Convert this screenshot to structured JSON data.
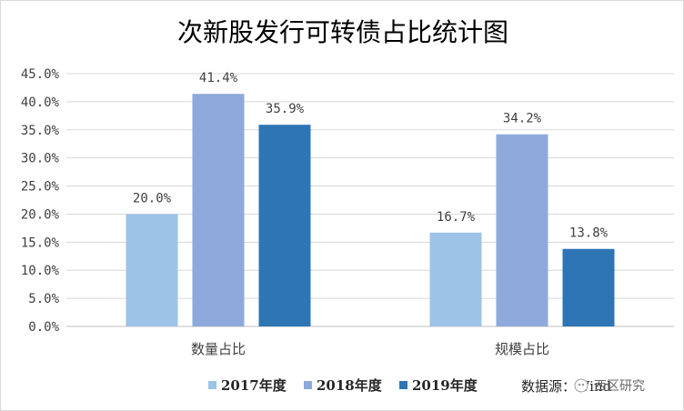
{
  "chart_data": {
    "type": "bar",
    "title": "次新股发行可转债占比统计图",
    "categories": [
      "数量占比",
      "规模占比"
    ],
    "series": [
      {
        "name": "2017年度",
        "values": [
          20.0,
          16.7
        ],
        "labels": [
          "20.0%",
          "16.7%"
        ],
        "color": "#9DC3E6"
      },
      {
        "name": "2018年度",
        "values": [
          41.4,
          34.2
        ],
        "labels": [
          "41.4%",
          "34.2%"
        ],
        "color": "#8EA9DB"
      },
      {
        "name": "2019年度",
        "values": [
          35.9,
          13.8
        ],
        "labels": [
          "35.9%",
          "13.8%"
        ],
        "color": "#2E75B6"
      }
    ],
    "yticks": [
      "0.0%",
      "5.0%",
      "10.0%",
      "15.0%",
      "20.0%",
      "25.0%",
      "30.0%",
      "35.0%",
      "40.0%",
      "45.0%"
    ],
    "ylim": [
      0,
      45
    ],
    "grid": true,
    "legend_position": "bottom",
    "source": "数据源：Wind",
    "watermark": "西区研究"
  }
}
